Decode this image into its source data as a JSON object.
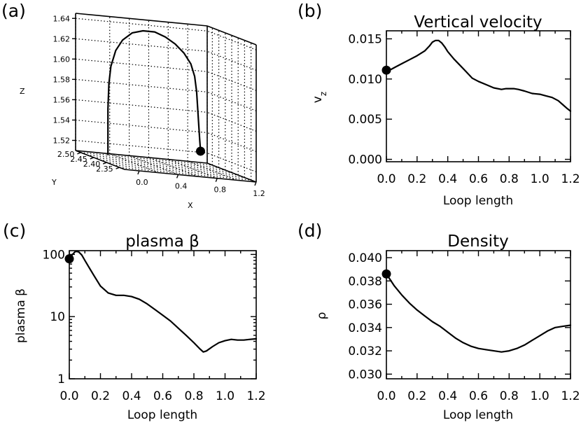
{
  "chart_data": [
    {
      "id": "a",
      "panel_label": "(a)",
      "type": "line3d",
      "title": "",
      "xlabel": "X",
      "ylabel": "Y",
      "zlabel": "Z",
      "xlim": [
        -0.15,
        1.2
      ],
      "ylim": [
        2.33,
        2.52
      ],
      "zlim": [
        1.51,
        1.645
      ],
      "x_ticks": [
        "0.0",
        "0.4",
        "0.8",
        "1.2"
      ],
      "y_ticks": [
        "2.35",
        "2.40",
        "2.45",
        "2.50"
      ],
      "z_ticks": [
        "1.52",
        "1.54",
        "1.56",
        "1.58",
        "1.60",
        "1.62",
        "1.64"
      ],
      "loop": {
        "x": [
          -0.03,
          -0.03,
          -0.03,
          -0.02,
          0.0,
          0.05,
          0.12,
          0.22,
          0.33,
          0.45,
          0.56,
          0.66,
          0.75,
          0.82,
          0.86,
          0.88,
          0.89,
          0.9,
          0.91,
          0.92
        ],
        "y": [
          2.44,
          2.44,
          2.44,
          2.44,
          2.44,
          2.44,
          2.44,
          2.44,
          2.44,
          2.44,
          2.44,
          2.44,
          2.44,
          2.44,
          2.44,
          2.44,
          2.44,
          2.44,
          2.44,
          2.44
        ],
        "z": [
          1.515,
          1.535,
          1.56,
          1.585,
          1.602,
          1.618,
          1.629,
          1.637,
          1.64,
          1.64,
          1.636,
          1.63,
          1.622,
          1.612,
          1.6,
          1.585,
          1.57,
          1.555,
          1.54,
          1.527
        ]
      },
      "marker": {
        "x": 0.92,
        "y": 2.44,
        "z": 1.527
      }
    },
    {
      "id": "b",
      "panel_label": "(b)",
      "type": "line",
      "title": "Vertical velocity",
      "xlabel": "Loop length",
      "ylabel": "v",
      "ylabel_sub": "z",
      "xlim": [
        0.0,
        1.2
      ],
      "ylim": [
        -0.0003,
        0.016
      ],
      "yscale": "linear",
      "x_ticks": [
        "0.0",
        "0.2",
        "0.4",
        "0.6",
        "0.8",
        "1.0",
        "1.2"
      ],
      "y_ticks": [
        "0.000",
        "0.005",
        "0.010",
        "0.015"
      ],
      "series": [
        {
          "name": "v_z",
          "x": [
            0.0,
            0.03,
            0.06,
            0.1,
            0.15,
            0.2,
            0.25,
            0.28,
            0.3,
            0.32,
            0.34,
            0.36,
            0.38,
            0.4,
            0.44,
            0.48,
            0.52,
            0.56,
            0.6,
            0.65,
            0.7,
            0.75,
            0.78,
            0.8,
            0.83,
            0.86,
            0.9,
            0.95,
            1.0,
            1.04,
            1.08,
            1.12,
            1.15,
            1.18,
            1.2
          ],
          "y": [
            0.0111,
            0.0112,
            0.0115,
            0.0119,
            0.0124,
            0.0129,
            0.0135,
            0.0141,
            0.0146,
            0.0148,
            0.0148,
            0.0145,
            0.014,
            0.0134,
            0.0125,
            0.0117,
            0.0109,
            0.0101,
            0.0097,
            0.0093,
            0.0089,
            0.0087,
            0.0088,
            0.0088,
            0.0088,
            0.0087,
            0.0085,
            0.0082,
            0.0081,
            0.0079,
            0.0077,
            0.0073,
            0.0068,
            0.0063,
            0.006
          ]
        }
      ],
      "marker": {
        "x": 0.0,
        "y": 0.0111
      }
    },
    {
      "id": "c",
      "panel_label": "(c)",
      "type": "line",
      "title": "plasma β",
      "xlabel": "Loop length",
      "ylabel": "plasma β",
      "xlim": [
        0.0,
        1.2
      ],
      "ylim": [
        1,
        115
      ],
      "yscale": "log",
      "x_ticks": [
        "0.0",
        "0.2",
        "0.4",
        "0.6",
        "0.8",
        "1.0",
        "1.2"
      ],
      "y_ticks": [
        "1",
        "10",
        "100"
      ],
      "y_tick_values": [
        1,
        10,
        100
      ],
      "series": [
        {
          "name": "beta",
          "x": [
            0.0,
            0.02,
            0.04,
            0.06,
            0.08,
            0.1,
            0.13,
            0.16,
            0.2,
            0.25,
            0.3,
            0.35,
            0.4,
            0.45,
            0.5,
            0.55,
            0.6,
            0.65,
            0.7,
            0.75,
            0.8,
            0.84,
            0.86,
            0.88,
            0.92,
            0.96,
            1.0,
            1.04,
            1.08,
            1.12,
            1.16,
            1.2
          ],
          "y": [
            85,
            100,
            112,
            110,
            98,
            80,
            60,
            45,
            31,
            24,
            22,
            22,
            21,
            19,
            16,
            13,
            10.5,
            8.5,
            6.5,
            5.0,
            3.8,
            3.0,
            2.7,
            2.8,
            3.3,
            3.8,
            4.1,
            4.3,
            4.2,
            4.2,
            4.3,
            4.4
          ]
        }
      ],
      "marker": {
        "x": 0.0,
        "y": 85
      }
    },
    {
      "id": "d",
      "panel_label": "(d)",
      "type": "line",
      "title": "Density",
      "xlabel": "Loop length",
      "ylabel": "ρ",
      "xlim": [
        0.0,
        1.2
      ],
      "ylim": [
        0.0296,
        0.0406
      ],
      "yscale": "linear",
      "x_ticks": [
        "0.0",
        "0.2",
        "0.4",
        "0.6",
        "0.8",
        "1.0",
        "1.2"
      ],
      "y_ticks": [
        "0.030",
        "0.032",
        "0.034",
        "0.036",
        "0.038",
        "0.040"
      ],
      "series": [
        {
          "name": "rho",
          "x": [
            0.0,
            0.02,
            0.05,
            0.1,
            0.15,
            0.2,
            0.25,
            0.3,
            0.35,
            0.4,
            0.45,
            0.5,
            0.55,
            0.6,
            0.65,
            0.7,
            0.75,
            0.8,
            0.85,
            0.9,
            0.95,
            1.0,
            1.05,
            1.1,
            1.15,
            1.2
          ],
          "y": [
            0.0386,
            0.0382,
            0.0376,
            0.0368,
            0.0361,
            0.0355,
            0.035,
            0.0345,
            0.0341,
            0.0336,
            0.0331,
            0.0327,
            0.0324,
            0.0322,
            0.0321,
            0.032,
            0.0319,
            0.032,
            0.0322,
            0.0325,
            0.0329,
            0.0333,
            0.0337,
            0.034,
            0.0341,
            0.0342
          ]
        }
      ],
      "marker": {
        "x": 0.0,
        "y": 0.0386
      }
    }
  ]
}
